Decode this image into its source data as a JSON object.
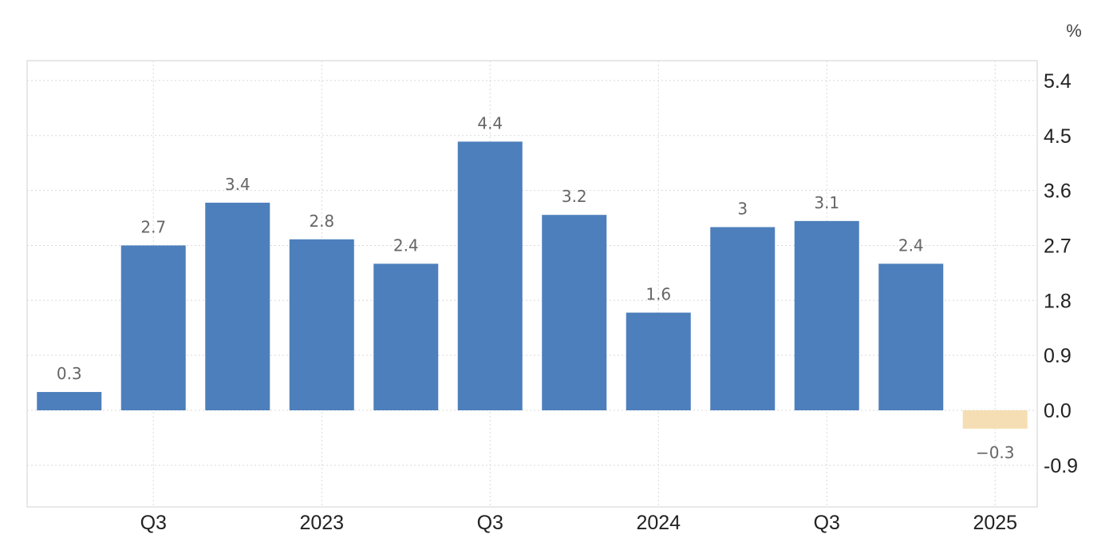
{
  "chart_data": {
    "type": "bar",
    "unit": "%",
    "categories": [
      "2022 Q2",
      "2022 Q3",
      "2022 Q4",
      "2023 Q1",
      "2023 Q2",
      "2023 Q3",
      "2023 Q4",
      "2024 Q1",
      "2024 Q2",
      "2024 Q3",
      "2024 Q4",
      "2025 Q1"
    ],
    "values": [
      0.3,
      2.7,
      3.4,
      2.8,
      2.4,
      4.4,
      3.2,
      1.6,
      3,
      3.1,
      2.4,
      -0.3
    ],
    "data_labels": [
      "0.3",
      "2.7",
      "3.4",
      "2.8",
      "2.4",
      "4.4",
      "3.2",
      "1.6",
      "3",
      "3.1",
      "2.4",
      "−0.3"
    ],
    "x_tick_labels": [
      {
        "label": "Q3",
        "at": "2022 Q3"
      },
      {
        "label": "2023",
        "at": "2023 Q1"
      },
      {
        "label": "Q3",
        "at": "2023 Q3"
      },
      {
        "label": "2024",
        "at": "2024 Q1"
      },
      {
        "label": "Q3",
        "at": "2024 Q3"
      },
      {
        "label": "2025",
        "at": "2025 Q1"
      }
    ],
    "y_ticks": [
      5.4,
      4.5,
      3.6,
      2.7,
      1.8,
      0.9,
      0.0,
      -0.9
    ],
    "y_tick_labels": [
      "5.4",
      "4.5",
      "3.6",
      "2.7",
      "1.8",
      "0.9",
      "0.0",
      "-0.9"
    ],
    "ylim": [
      -1.5,
      5.7
    ],
    "y_axis_position": "right",
    "grid": true,
    "colors": {
      "positive": "#4d7fbc",
      "negative": "#f5deb3"
    }
  }
}
